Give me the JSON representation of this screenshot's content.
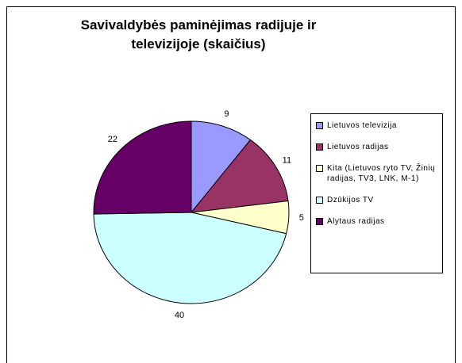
{
  "chart_data": {
    "type": "pie",
    "title": "Savivaldybės paminėjimas radijuje ir televizijoje (skaičius)",
    "categories": [
      "Lietuvos televizija",
      "Lietuvos radijas",
      "Kita (Lietuvos ryto TV, Žinių radijas, TV3, LNK, M-1)",
      "Dzūkijos TV",
      "Alytaus radijas"
    ],
    "values": [
      9,
      11,
      5,
      40,
      22
    ],
    "colors": [
      "#9999ff",
      "#993366",
      "#ffffcc",
      "#ccffff",
      "#660066"
    ],
    "legend": "right"
  }
}
